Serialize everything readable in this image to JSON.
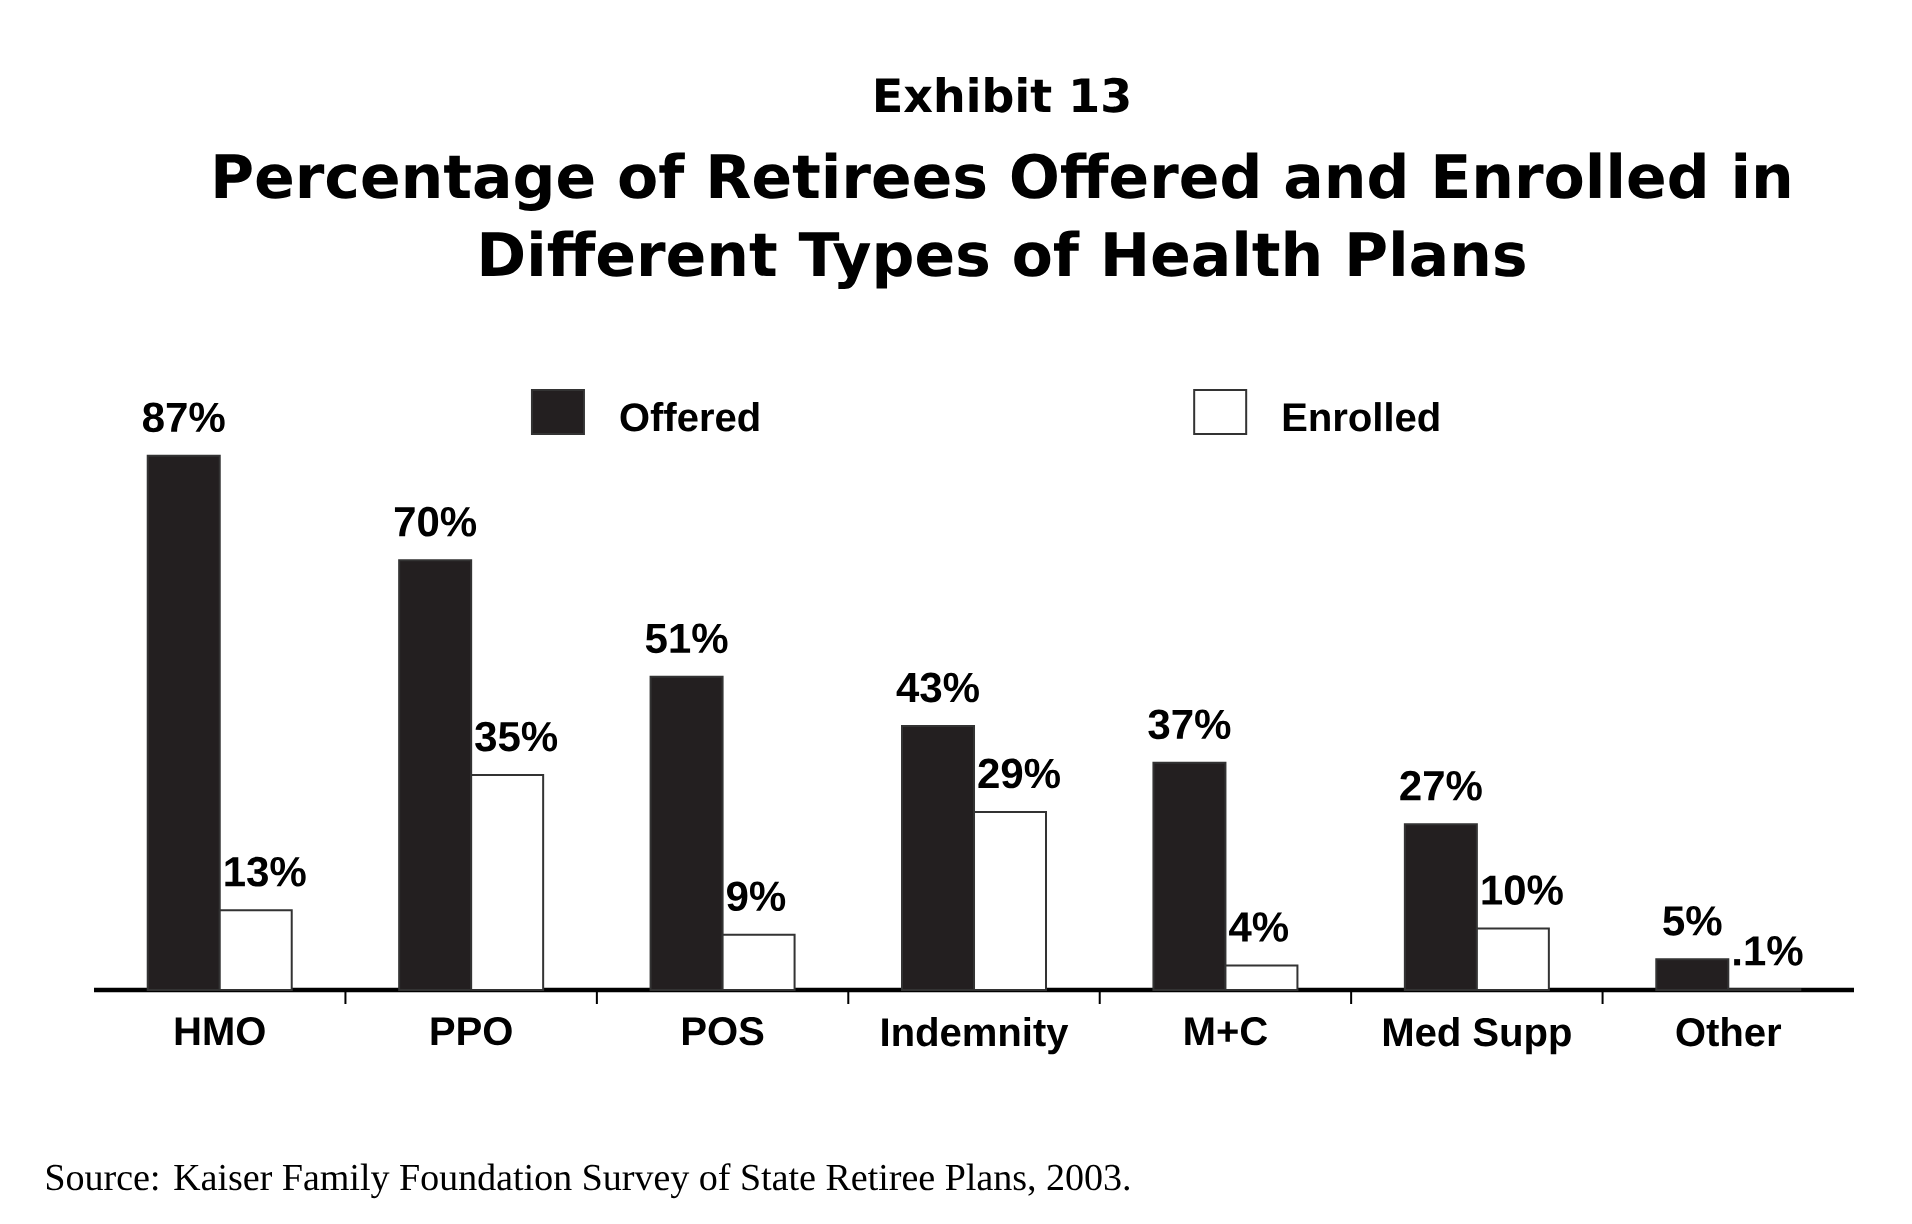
{
  "chart_data": {
    "type": "bar",
    "subtitle": "Exhibit 13",
    "title": "Percentage of Retirees Offered and Enrolled in Different Types of Health Plans",
    "categories": [
      "HMO",
      "PPO",
      "POS",
      "Indemnity",
      "M+C",
      "Med Supp",
      "Other"
    ],
    "series": [
      {
        "name": "Offered",
        "color": "#231f20",
        "values": [
          87,
          70,
          51,
          43,
          37,
          27,
          5
        ],
        "value_labels": [
          "87%",
          "70%",
          "51%",
          "43%",
          "37%",
          "27%",
          "5%"
        ]
      },
      {
        "name": "Enrolled",
        "color": "#ffffff",
        "values": [
          13,
          35,
          9,
          29,
          4,
          10,
          0.1
        ],
        "value_labels": [
          "13%",
          "35%",
          "9%",
          "29%",
          "4%",
          "10%",
          ".1%"
        ]
      }
    ],
    "legend": "top",
    "annotations": [
      "Source: Kaiser Family Foundation Survey of State Retiree Plans, 2003."
    ]
  }
}
